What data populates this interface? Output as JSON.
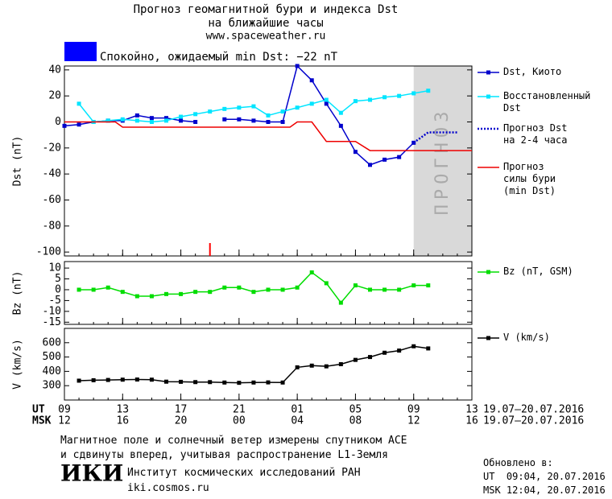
{
  "header": {
    "title": "Прогноз геомагнитной бури и индекса Dst",
    "subtitle": "на ближайшие часы",
    "url": "www.spaceweather.ru",
    "status_color": "#0000ff",
    "status": "Спокойно, ожидаемый min Dst: −22 nT"
  },
  "chart_data": [
    {
      "type": "line",
      "y_label": "Dst (nT)",
      "xlim": [
        0,
        28
      ],
      "ylim": [
        -103,
        43
      ],
      "yticks": [
        40,
        20,
        0,
        -20,
        -40,
        -60,
        -80,
        -100
      ],
      "xticks": [
        0,
        4,
        8,
        12,
        16,
        20,
        24,
        28
      ],
      "forecast_region": {
        "xlim": [
          24,
          28
        ],
        "color": "#d9d9d9",
        "label": "ПРОГНОЗ"
      },
      "event_marker": {
        "x": 10,
        "color": "#ff0000"
      },
      "series": [
        {
          "name": "Dst, Киото",
          "color": "#0000cc",
          "marker": "square",
          "x": [
            0,
            1,
            2,
            3,
            4,
            5,
            6,
            7,
            8,
            9,
            10,
            11,
            12,
            13,
            14,
            15,
            16,
            17,
            18,
            19,
            20,
            21,
            22,
            23,
            24
          ],
          "values": [
            -3,
            -2,
            0,
            1,
            1,
            5,
            3,
            3,
            1,
            0,
            null,
            2,
            2,
            1,
            0,
            0,
            43,
            32,
            14,
            -3,
            -23,
            -33,
            -29,
            -27,
            -16
          ]
        },
        {
          "name": "Восстановленный\nDst",
          "color": "#00e5ff",
          "marker": "square",
          "x": [
            1,
            2,
            3,
            4,
            5,
            6,
            7,
            8,
            9,
            10,
            11,
            12,
            13,
            14,
            15,
            16,
            17,
            18,
            19,
            20,
            21,
            22,
            23,
            24,
            25
          ],
          "values": [
            14,
            0,
            1,
            2,
            1,
            0,
            1,
            4,
            6,
            8,
            10,
            11,
            12,
            5,
            8,
            11,
            14,
            17,
            7,
            16,
            17,
            19,
            20,
            22,
            24
          ]
        },
        {
          "name": "Прогноз Dst\nна 2-4 часа",
          "color": "#0000cc",
          "style": "dotted",
          "x": [
            24,
            25,
            27
          ],
          "values": [
            -16,
            -8,
            -8
          ]
        },
        {
          "name": "Прогноз\nсилы бури\n(min Dst)",
          "color": "#ee0000",
          "x": [
            0,
            3.5,
            4,
            15.5,
            16,
            17,
            18,
            20,
            21,
            28
          ],
          "values": [
            0,
            0,
            -4,
            -4,
            0,
            0,
            -15,
            -15,
            -22,
            -22
          ]
        }
      ]
    },
    {
      "type": "line",
      "y_label": "Bz (nT)",
      "xlim": [
        0,
        28
      ],
      "ylim": [
        -16,
        13
      ],
      "yticks": [
        10,
        5,
        0,
        -5,
        -10,
        -15
      ],
      "xticks": [
        0,
        4,
        8,
        12,
        16,
        20,
        24,
        28
      ],
      "series": [
        {
          "name": "Bz (nT, GSM)",
          "color": "#00dd00",
          "marker": "square",
          "x": [
            1,
            2,
            3,
            4,
            5,
            6,
            7,
            8,
            9,
            10,
            11,
            12,
            13,
            14,
            15,
            16,
            17,
            18,
            19,
            20,
            21,
            22,
            23,
            24,
            25
          ],
          "values": [
            0,
            0,
            1,
            -1,
            -3,
            -3,
            -2,
            -2,
            -1,
            -1,
            1,
            1,
            -1,
            0,
            0,
            1,
            8,
            3,
            -6,
            2,
            0,
            0,
            0,
            2,
            2
          ]
        }
      ]
    },
    {
      "type": "line",
      "y_label": "V (km/s)",
      "xlim": [
        0,
        28
      ],
      "ylim": [
        200,
        700
      ],
      "yticks": [
        600,
        500,
        400,
        300
      ],
      "x_label": "UT",
      "x2_label": "MSK",
      "date_range": "19.07–20.07.2016",
      "date_range2": "19.07–20.07.2016",
      "xticks": [
        {
          "value": 0,
          "label": "09"
        },
        {
          "value": 4,
          "label": "13"
        },
        {
          "value": 8,
          "label": "17"
        },
        {
          "value": 12,
          "label": "21"
        },
        {
          "value": 16,
          "label": "01"
        },
        {
          "value": 20,
          "label": "05"
        },
        {
          "value": 24,
          "label": "09"
        },
        {
          "value": 28,
          "label": "13"
        }
      ],
      "x2ticks": [
        {
          "value": 0,
          "label": "12"
        },
        {
          "value": 4,
          "label": "16"
        },
        {
          "value": 8,
          "label": "20"
        },
        {
          "value": 12,
          "label": "00"
        },
        {
          "value": 16,
          "label": "04"
        },
        {
          "value": 20,
          "label": "08"
        },
        {
          "value": 24,
          "label": "12"
        },
        {
          "value": 28,
          "label": "16"
        }
      ],
      "series": [
        {
          "name": "V (km/s)",
          "color": "#000000",
          "marker": "square",
          "x": [
            1,
            2,
            3,
            4,
            5,
            6,
            7,
            8,
            9,
            10,
            11,
            12,
            13,
            14,
            15,
            16,
            17,
            18,
            19,
            20,
            21,
            22,
            23,
            24,
            25
          ],
          "values": [
            335,
            338,
            340,
            342,
            343,
            342,
            328,
            327,
            325,
            325,
            322,
            320,
            322,
            323,
            322,
            428,
            440,
            435,
            450,
            480,
            500,
            530,
            545,
            575,
            560
          ]
        }
      ]
    }
  ],
  "footer": {
    "note1": "Магнитное поле и солнечный ветер измерены спутником ACE",
    "note2": "и сдвинуты вперед, учитывая распространение L1-Земля",
    "logo": "ИКИ",
    "institute": "Институт космических исследований РАН",
    "site": "iki.cosmos.ru",
    "updated": "Обновлено в:",
    "updated_ut": "UT  09:04, 20.07.2016",
    "updated_msk": "MSK 12:04, 20.07.2016"
  }
}
